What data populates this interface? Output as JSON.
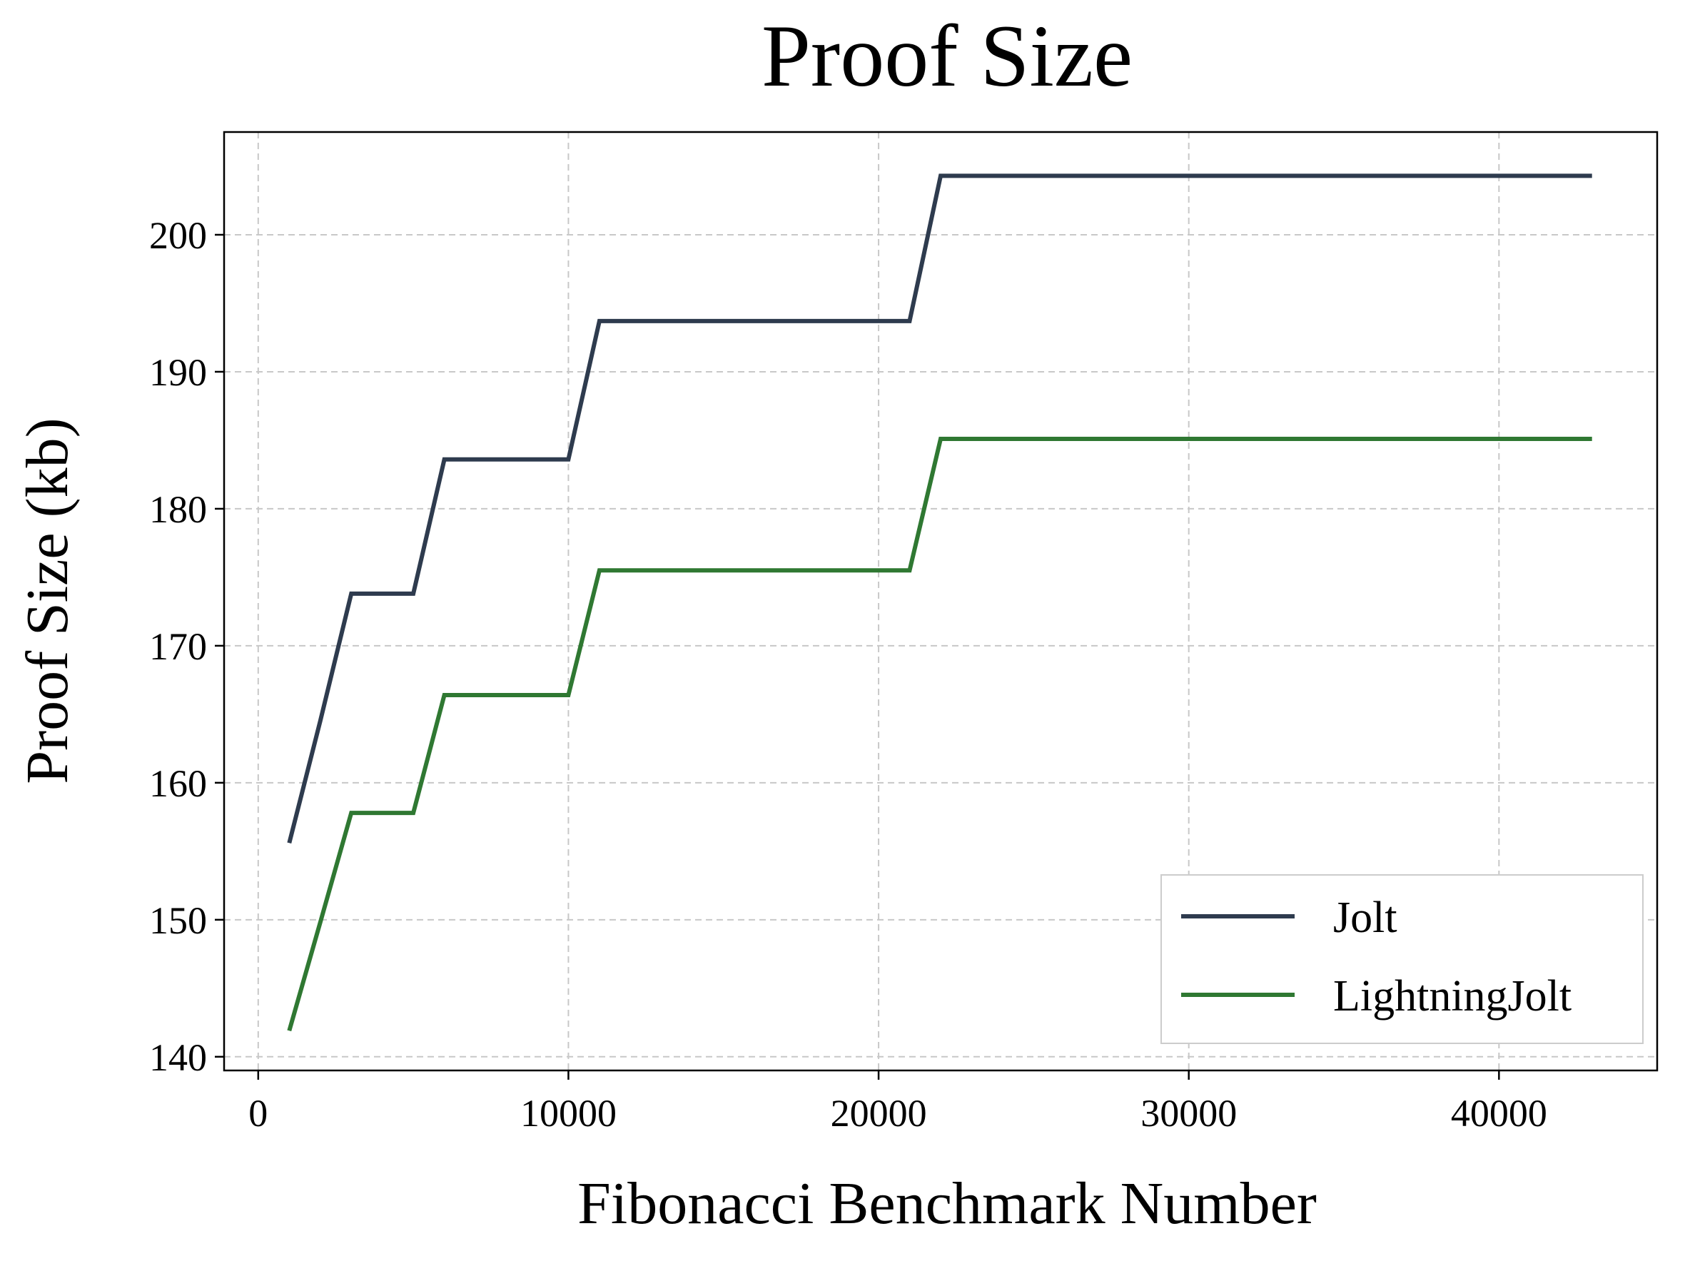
{
  "chart_data": {
    "type": "line",
    "title": "Proof Size",
    "xlabel": "Fibonacci Benchmark Number",
    "ylabel": "Proof Size (kb)",
    "xlim": [
      -1100,
      45100
    ],
    "ylim": [
      139.0,
      207.5
    ],
    "xticks": [
      0,
      10000,
      20000,
      30000,
      40000
    ],
    "yticks": [
      140,
      150,
      160,
      170,
      180,
      190,
      200
    ],
    "grid": true,
    "legend_position": "lower-right",
    "series": [
      {
        "name": "Jolt",
        "color": "#2e3b4e",
        "x": [
          1000,
          2000,
          3000,
          4000,
          5000,
          6000,
          7000,
          8000,
          9000,
          10000,
          11000,
          12000,
          13000,
          14000,
          15000,
          16000,
          17000,
          18000,
          19000,
          20000,
          21000,
          22000,
          23000,
          43000
        ],
        "y": [
          155.6,
          164.5,
          173.8,
          173.8,
          173.8,
          183.6,
          183.6,
          183.6,
          183.6,
          183.6,
          193.7,
          193.7,
          193.7,
          193.7,
          193.7,
          193.7,
          193.7,
          193.7,
          193.7,
          193.7,
          193.7,
          204.3,
          204.3,
          204.3
        ]
      },
      {
        "name": "LightningJolt",
        "color": "#2f7832",
        "x": [
          1000,
          2000,
          3000,
          4000,
          5000,
          6000,
          7000,
          8000,
          9000,
          10000,
          11000,
          12000,
          13000,
          14000,
          15000,
          16000,
          17000,
          18000,
          19000,
          20000,
          21000,
          22000,
          23000,
          43000
        ],
        "y": [
          141.9,
          149.8,
          157.8,
          157.8,
          157.8,
          166.4,
          166.4,
          166.4,
          166.4,
          166.4,
          175.5,
          175.5,
          175.5,
          175.5,
          175.5,
          175.5,
          175.5,
          175.5,
          175.5,
          175.5,
          175.5,
          185.1,
          185.1,
          185.1
        ]
      }
    ]
  }
}
